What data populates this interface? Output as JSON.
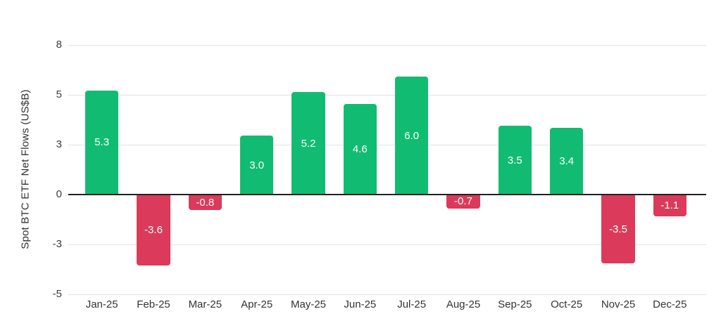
{
  "chart_data": {
    "type": "bar",
    "title": "",
    "categories": [
      "Jan-25",
      "Feb-25",
      "Mar-25",
      "Apr-25",
      "May-25",
      "Jun-25",
      "Jul-25",
      "Aug-25",
      "Sep-25",
      "Oct-25",
      "Nov-25",
      "Dec-25"
    ],
    "values": [
      5.3,
      -3.6,
      -0.8,
      3.0,
      5.2,
      4.6,
      6.0,
      -0.7,
      3.5,
      3.4,
      -3.5,
      -1.1
    ],
    "value_labels": [
      "5.3",
      "-3.6",
      "-0.8",
      "3.0",
      "5.2",
      "4.6",
      "6.0",
      "-0.7",
      "3.5",
      "3.4",
      "-3.5",
      "-1.1"
    ],
    "xlabel": "",
    "ylabel": "Spot BTC ETF Net Flows (US$B)",
    "ytick_labels": [
      "8",
      "5",
      "3",
      "0",
      "-3",
      "-5"
    ],
    "ylim": [
      -5.2,
      7.8
    ],
    "grid": true,
    "legend_position": "none",
    "colors": {
      "positive_bar": "#11BC72",
      "negative_bar": "#DB3A5B",
      "bar_label_text": "#FFFFFF",
      "gridline": "#E2E2E2",
      "zero_line": "#212121",
      "axis_text": "#3C3C3C"
    }
  }
}
